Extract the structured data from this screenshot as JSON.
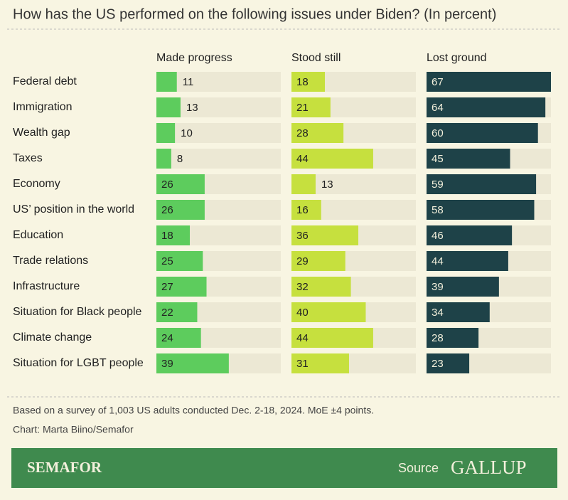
{
  "chart_data": {
    "type": "bar",
    "title": "How has the US performed on the following issues under Biden? (In percent)",
    "categories": [
      "Federal debt",
      "Immigration",
      "Wealth gap",
      "Taxes",
      "Economy",
      "US’ position in the world",
      "Education",
      "Trade relations",
      "Infrastructure",
      "Situation for Black people",
      "Climate change",
      "Situation for LGBT people"
    ],
    "series": [
      {
        "name": "Made progress",
        "color": "#5dcc5d",
        "values": [
          11,
          13,
          10,
          8,
          26,
          26,
          18,
          25,
          27,
          22,
          24,
          39
        ]
      },
      {
        "name": "Stood still",
        "color": "#c6e03e",
        "values": [
          18,
          21,
          28,
          44,
          13,
          16,
          36,
          29,
          32,
          40,
          44,
          31
        ]
      },
      {
        "name": "Lost ground",
        "color": "#1e4248",
        "values": [
          67,
          64,
          60,
          45,
          59,
          58,
          46,
          44,
          39,
          34,
          28,
          23
        ]
      }
    ],
    "xlim": [
      0,
      67
    ],
    "note": "Based on a survey of 1,003 US adults conducted Dec. 2-18, 2024. MoE ±4 points.",
    "credit": "Chart: Marta Biino/Semafor"
  },
  "footer": {
    "brand": "SEMAFOR",
    "source_label": "Source",
    "source": "GALLUP"
  }
}
